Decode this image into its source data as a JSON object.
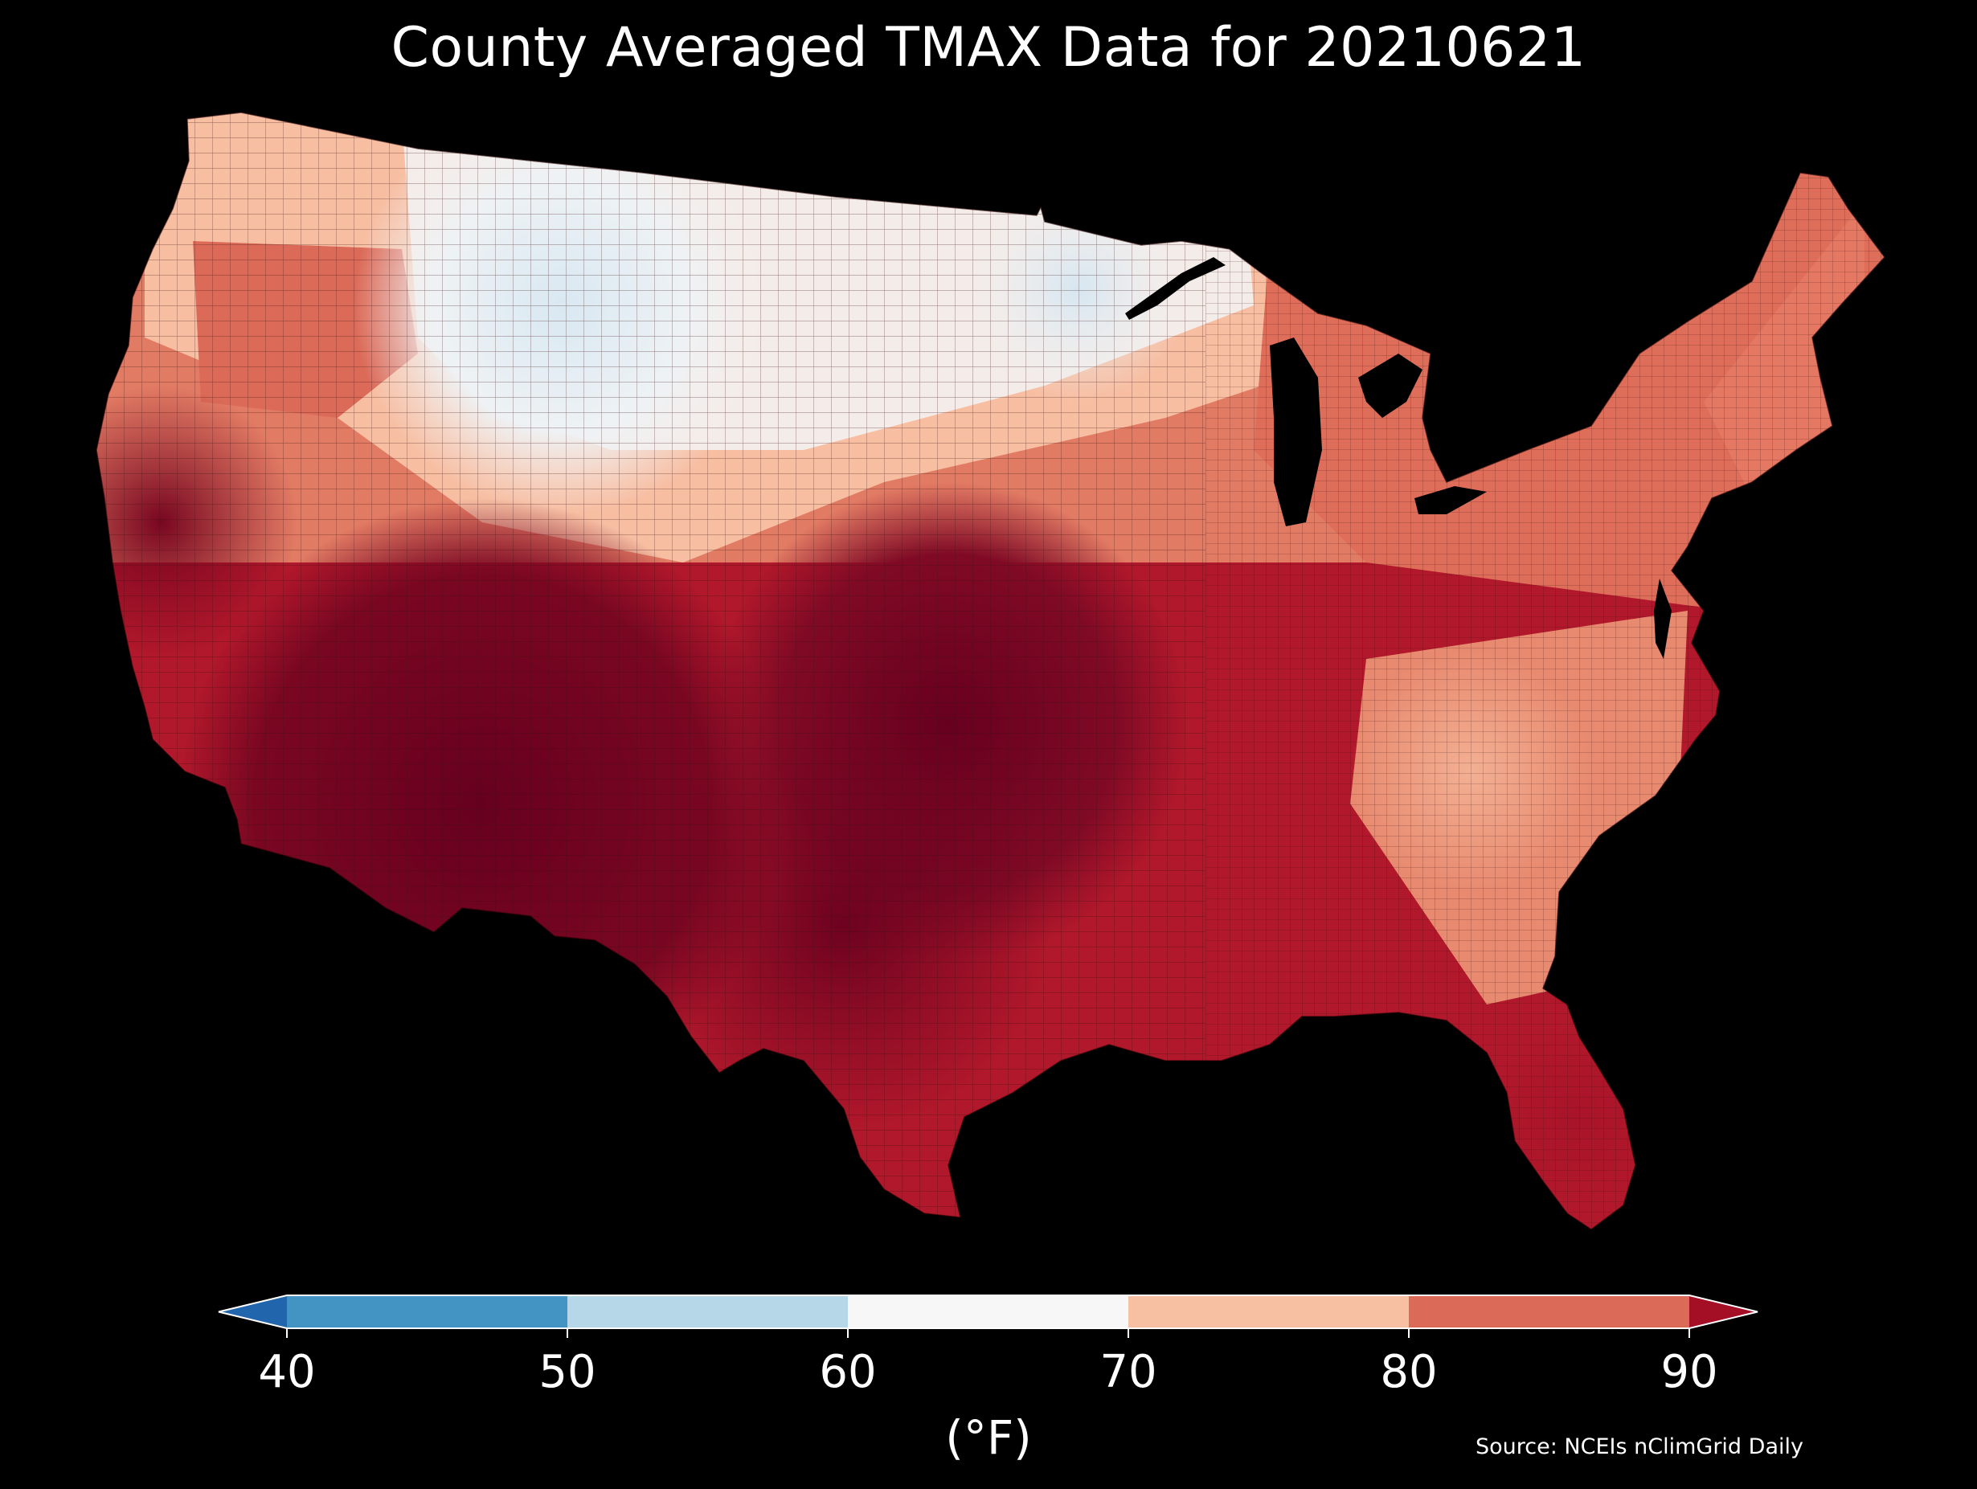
{
  "title": "County Averaged TMAX Data for 20210621",
  "source": "Source: NCEIs nClimGrid Daily",
  "colorbar": {
    "ticks": [
      "40",
      "50",
      "60",
      "70",
      "80",
      "90"
    ],
    "unit": "(°F)",
    "extend": "both",
    "bins": [
      {
        "from": 40,
        "to": 50,
        "color": "#4393c3"
      },
      {
        "from": 50,
        "to": 60,
        "color": "#b6d7e8"
      },
      {
        "from": 60,
        "to": 70,
        "color": "#f7f7f7"
      },
      {
        "from": 70,
        "to": 80,
        "color": "#f8c0a3"
      },
      {
        "from": 80,
        "to": 90,
        "color": "#db6a58"
      }
    ],
    "under_color": "#2166ac",
    "over_color": "#a50f26"
  },
  "map": {
    "region": "Contiguous United States",
    "unit": "county",
    "variable": "TMAX",
    "palette": [
      "#2166ac",
      "#4393c3",
      "#b6d7e8",
      "#f7f7f7",
      "#f8c0a3",
      "#db6a58",
      "#b2182b",
      "#67001f"
    ],
    "background": "#000000"
  }
}
